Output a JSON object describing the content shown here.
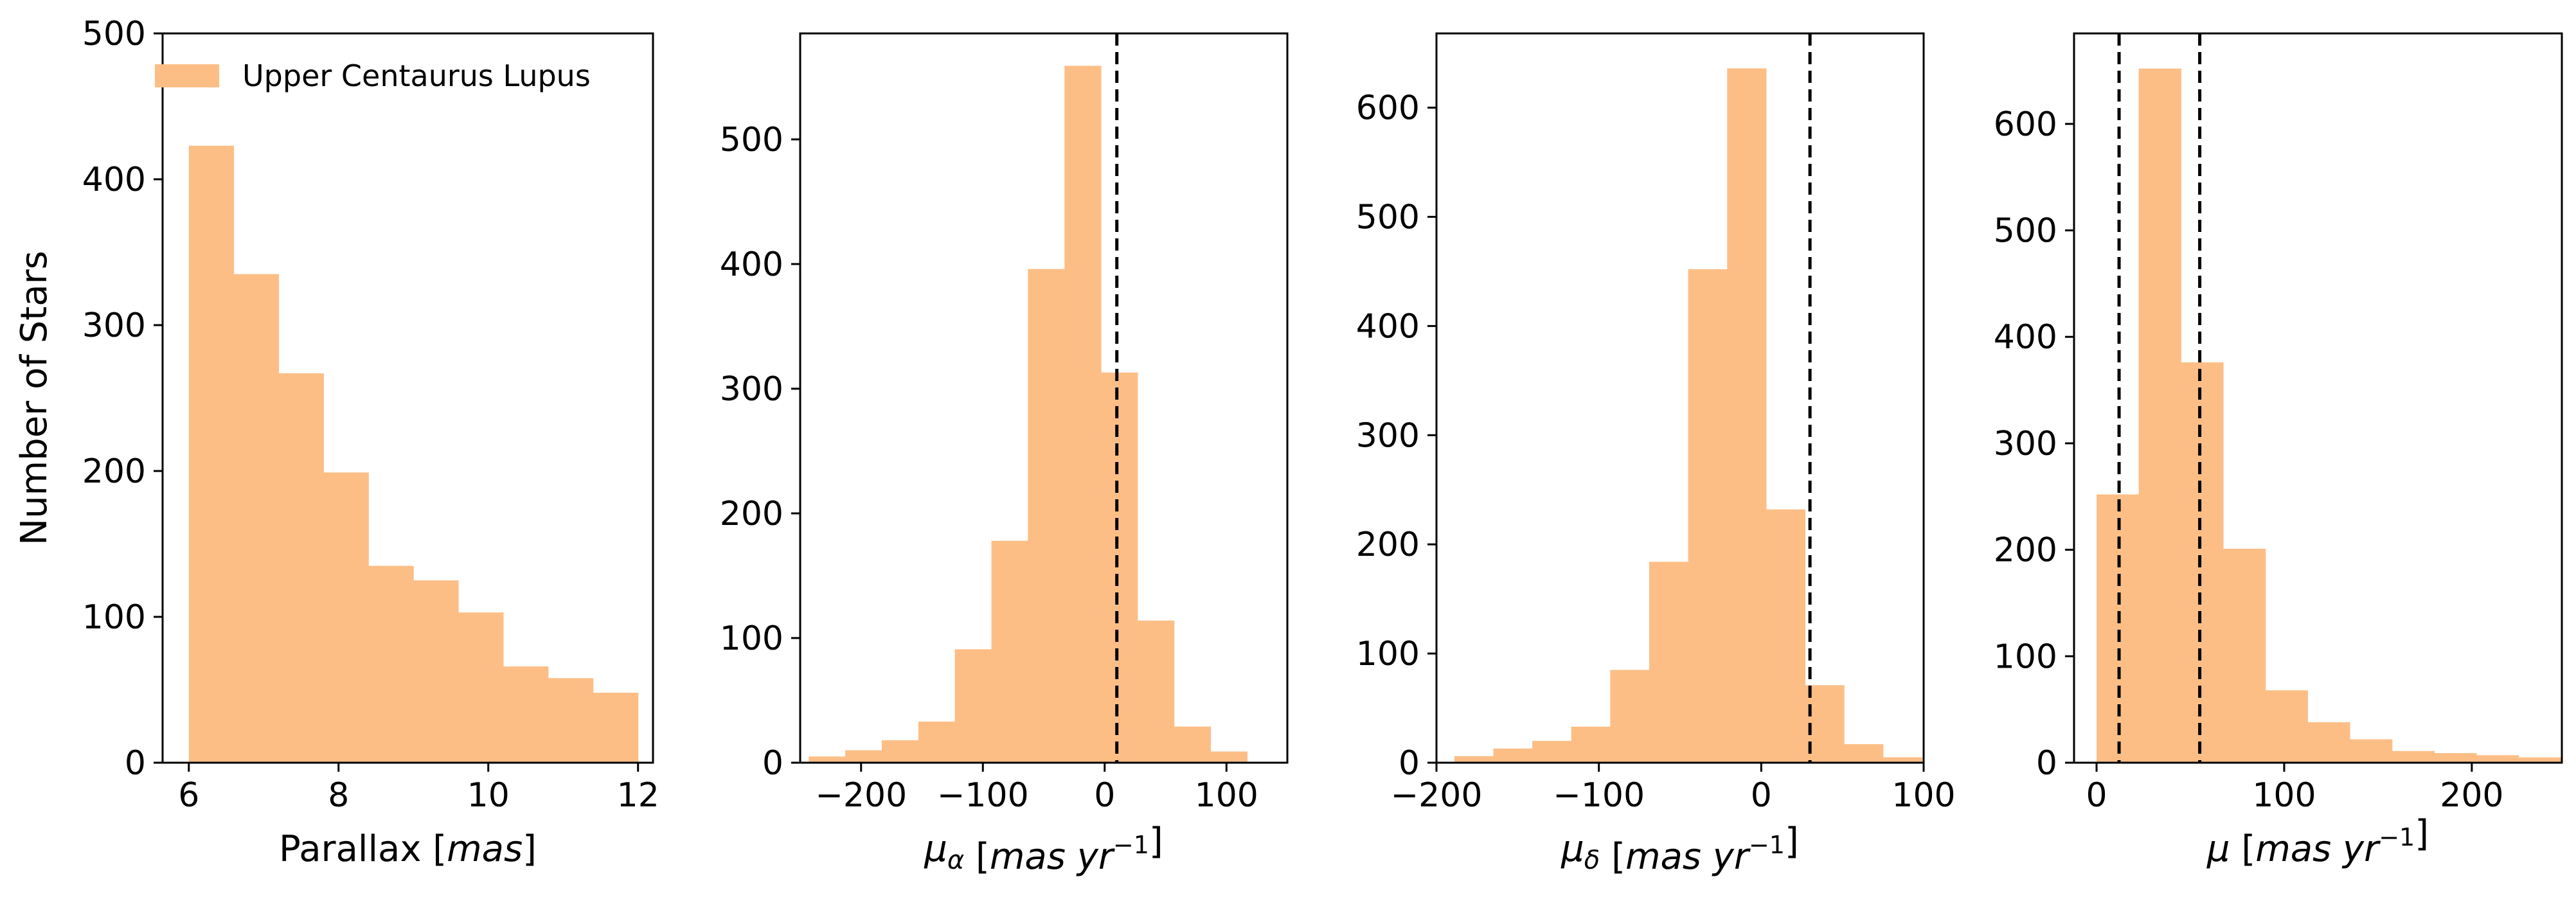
{
  "chart_data": [
    {
      "type": "bar",
      "ylabel": "Number of Stars",
      "xlabel_parts": [
        {
          "t": "Parallax [",
          "s": "n"
        },
        {
          "t": "mas",
          "s": "i"
        },
        {
          "t": "]",
          "s": "n"
        }
      ],
      "xlim": [
        5.65,
        12.2
      ],
      "ylim": [
        0,
        500
      ],
      "xticks": [
        6,
        8,
        10,
        12
      ],
      "yticks": [
        0,
        100,
        200,
        300,
        400,
        500
      ],
      "xtick_labels": [
        "6",
        "8",
        "10",
        "12"
      ],
      "ytick_labels": [
        "0",
        "100",
        "200",
        "300",
        "400",
        "500"
      ],
      "bin_edges": [
        6.0,
        6.6,
        7.2,
        7.8,
        8.4,
        9.0,
        9.6,
        10.2,
        10.8,
        11.4,
        12.0
      ],
      "values": [
        423,
        335,
        267,
        199,
        135,
        125,
        103,
        66,
        58,
        48
      ],
      "vlines": [],
      "legend": {
        "label": "Upper Centaurus Lupus",
        "position": "upper left"
      }
    },
    {
      "type": "bar",
      "xlabel_parts": [
        {
          "t": "μ",
          "s": "i"
        },
        {
          "t": "α",
          "s": "sub"
        },
        {
          "t": " [",
          "s": "n"
        },
        {
          "t": "mas yr",
          "s": "i"
        },
        {
          "t": "−1",
          "s": "sup"
        },
        {
          "t": "]",
          "s": "n"
        }
      ],
      "xlim": [
        -250,
        150
      ],
      "ylim": [
        0,
        585
      ],
      "xticks": [
        -200,
        -100,
        0,
        100
      ],
      "yticks": [
        0,
        100,
        200,
        300,
        400,
        500
      ],
      "xtick_labels": [
        "−200",
        "−100",
        "0",
        "100"
      ],
      "ytick_labels": [
        "0",
        "100",
        "200",
        "300",
        "400",
        "500"
      ],
      "bin_edges": [
        -243,
        -213,
        -183,
        -153,
        -123,
        -93,
        -63,
        -33,
        -3,
        27,
        57,
        87,
        117
      ],
      "values": [
        5,
        10,
        18,
        33,
        91,
        178,
        396,
        559,
        313,
        114,
        29,
        9
      ],
      "vlines": [
        10
      ]
    },
    {
      "type": "bar",
      "xlabel_parts": [
        {
          "t": "μ",
          "s": "i"
        },
        {
          "t": "δ",
          "s": "sub"
        },
        {
          "t": " [",
          "s": "n"
        },
        {
          "t": "mas yr",
          "s": "i"
        },
        {
          "t": "−1",
          "s": "sup"
        },
        {
          "t": "]",
          "s": "n"
        }
      ],
      "xlim": [
        -200,
        100
      ],
      "ylim": [
        0,
        668
      ],
      "xticks": [
        -200,
        -100,
        0,
        100
      ],
      "yticks": [
        0,
        100,
        200,
        300,
        400,
        500,
        600
      ],
      "xtick_labels": [
        "−200",
        "−100",
        "0",
        "100"
      ],
      "ytick_labels": [
        "0",
        "100",
        "200",
        "300",
        "400",
        "500",
        "600"
      ],
      "bin_edges": [
        -189,
        -165,
        -141,
        -117,
        -93,
        -69,
        -45,
        -21,
        3,
        27,
        51,
        75,
        99
      ],
      "values": [
        6,
        13,
        20,
        33,
        85,
        184,
        452,
        636,
        232,
        71,
        17,
        5
      ],
      "vlines": [
        30
      ]
    },
    {
      "type": "bar",
      "xlabel_parts": [
        {
          "t": "μ",
          "s": "i"
        },
        {
          "t": " [",
          "s": "n"
        },
        {
          "t": "mas yr",
          "s": "i"
        },
        {
          "t": "−1",
          "s": "sup"
        },
        {
          "t": "]",
          "s": "n"
        }
      ],
      "xlim": [
        -12,
        248
      ],
      "ylim": [
        0,
        685
      ],
      "xticks": [
        0,
        100,
        200
      ],
      "yticks": [
        0,
        100,
        200,
        300,
        400,
        500,
        600
      ],
      "xtick_labels": [
        "0",
        "100",
        "200"
      ],
      "ytick_labels": [
        "0",
        "100",
        "200",
        "300",
        "400",
        "500",
        "600"
      ],
      "bin_edges": [
        0,
        22.5,
        45,
        67.5,
        90,
        112.5,
        135,
        157.5,
        180,
        202.5,
        225,
        247.5
      ],
      "values": [
        252,
        652,
        376,
        201,
        68,
        38,
        22,
        11,
        9,
        7,
        5
      ],
      "vlines": [
        12,
        55
      ]
    }
  ],
  "colors": {
    "bar": "#fdbe86",
    "axis": "#000000",
    "vline": "#000000"
  }
}
